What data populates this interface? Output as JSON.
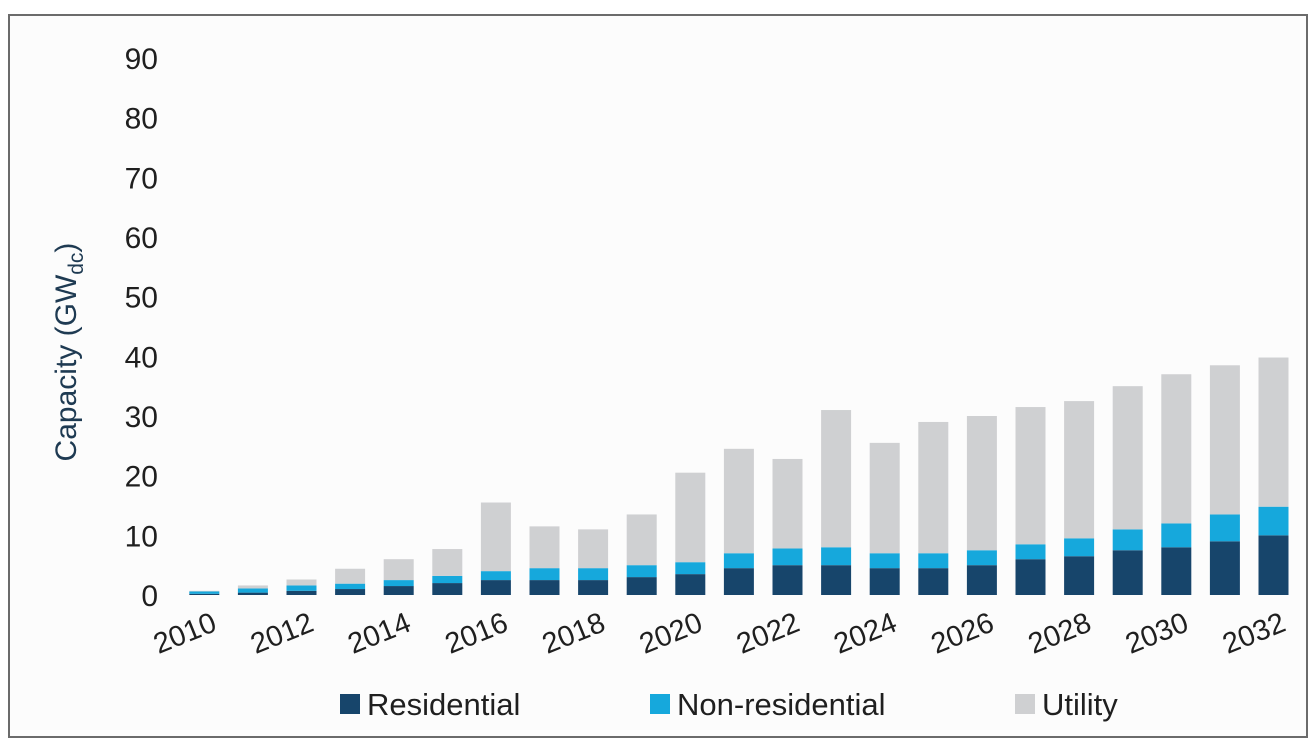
{
  "chart_data": {
    "type": "bar",
    "stacked": true,
    "categories": [
      "2010",
      "2011",
      "2012",
      "2013",
      "2014",
      "2015",
      "2016",
      "2017",
      "2018",
      "2019",
      "2020",
      "2021",
      "2022",
      "2023",
      "2024",
      "2025",
      "2026",
      "2027",
      "2028",
      "2029",
      "2030",
      "2031",
      "2032"
    ],
    "x_tick_labels": [
      "2010",
      "2012",
      "2014",
      "2016",
      "2018",
      "2020",
      "2022",
      "2024",
      "2026",
      "2028",
      "2030",
      "2032"
    ],
    "series": [
      {
        "name": "Residential",
        "color": "#17456b",
        "values": [
          0.2,
          0.4,
          0.7,
          1.0,
          1.5,
          2.0,
          2.5,
          2.5,
          2.5,
          3.0,
          3.5,
          4.5,
          5.0,
          5.0,
          4.5,
          4.5,
          5.0,
          6.0,
          6.5,
          7.5,
          8.0,
          9.0,
          10.0
        ]
      },
      {
        "name": "Non-residential",
        "color": "#16a8dc",
        "values": [
          0.4,
          0.7,
          0.9,
          0.9,
          1.0,
          1.2,
          1.5,
          2.0,
          2.0,
          2.0,
          2.0,
          2.5,
          2.8,
          3.0,
          2.5,
          2.5,
          2.5,
          2.5,
          3.0,
          3.5,
          4.0,
          4.5,
          4.8
        ]
      },
      {
        "name": "Utility",
        "color": "#cfd0d2",
        "values": [
          0.1,
          0.5,
          1.0,
          2.5,
          3.5,
          4.5,
          11.5,
          7.0,
          6.5,
          8.5,
          15.0,
          17.5,
          15.0,
          23.0,
          18.5,
          22.0,
          22.5,
          23.0,
          23.0,
          24.0,
          25.0,
          25.0,
          25.0
        ]
      }
    ],
    "ylabel": "Capacity (GW",
    "ylabel_subscript": "dc",
    "ylabel_close": ")",
    "y_ticks": [
      "0",
      "10",
      "20",
      "30",
      "40",
      "50",
      "60",
      "70",
      "80",
      "90"
    ],
    "ylim": [
      0,
      90
    ],
    "grid": false,
    "legend_position": "bottom"
  }
}
